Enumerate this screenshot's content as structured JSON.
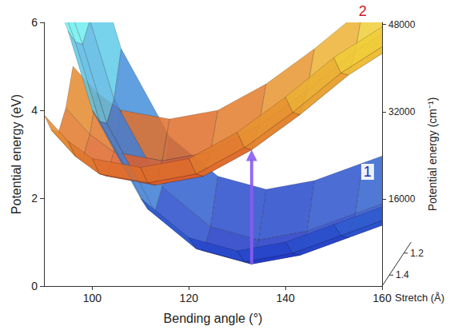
{
  "chart_data": {
    "type": "surface",
    "x_label": "Bending angle (°)",
    "y_label": "Potential energy (eV)",
    "y2_label": "Potential energy (cm⁻¹)",
    "stretch_label": "Stretch (Å)",
    "xlim": [
      90,
      160
    ],
    "xticks": [
      100,
      120,
      140,
      160
    ],
    "ylim": [
      0,
      6
    ],
    "yticks": [
      0,
      2,
      4,
      6
    ],
    "y2lim": [
      0,
      48393
    ],
    "y2ticks": [
      16000,
      32000,
      48000
    ],
    "stretch_lim": [
      1.1,
      1.5
    ],
    "stretch_ticks": [
      1.2,
      1.4
    ],
    "grid": false,
    "x": [
      90,
      95,
      100,
      110,
      120,
      130,
      140,
      150,
      160
    ],
    "stretch": [
      1.1,
      1.2,
      1.3,
      1.4,
      1.5
    ],
    "series": [
      {
        "name": "1",
        "color": "#1b2fc4",
        "label_at": [
          157,
          2.6
        ],
        "values": [
          [
            7.7,
            6.2,
            4.4,
            2.4,
            1.5,
            1.2,
            1.4,
            1.8,
            2.2
          ],
          [
            6.8,
            5.3,
            3.5,
            1.5,
            0.6,
            0.3,
            0.5,
            0.9,
            1.3
          ],
          [
            6.5,
            5.0,
            3.2,
            1.2,
            0.3,
            0.0,
            0.2,
            0.6,
            1.0
          ],
          [
            6.8,
            5.3,
            3.5,
            1.5,
            0.6,
            0.3,
            0.5,
            0.9,
            1.3
          ],
          [
            7.3,
            5.8,
            4.0,
            2.0,
            1.1,
            0.8,
            1.0,
            1.4,
            1.8
          ]
        ]
      },
      {
        "name": "2",
        "color": "#d0161f",
        "label_at": [
          156,
          6.25
        ],
        "values": [
          [
            4.0,
            3.4,
            3.0,
            2.8,
            3.0,
            3.6,
            4.4,
            5.3,
            6.0
          ],
          [
            3.3,
            2.7,
            2.3,
            2.1,
            2.3,
            2.9,
            3.7,
            4.6,
            5.3
          ],
          [
            3.0,
            2.4,
            2.0,
            1.8,
            2.0,
            2.6,
            3.4,
            4.3,
            5.0
          ],
          [
            3.3,
            2.7,
            2.3,
            2.1,
            2.3,
            2.9,
            3.7,
            4.6,
            5.3
          ],
          [
            3.9,
            3.3,
            2.9,
            2.7,
            2.9,
            3.5,
            4.3,
            5.2,
            5.9
          ]
        ]
      }
    ],
    "arrow": {
      "x": 130,
      "stretch": 1.3,
      "from": 0.0,
      "to": 2.6,
      "color": "#8a5cf0"
    }
  }
}
